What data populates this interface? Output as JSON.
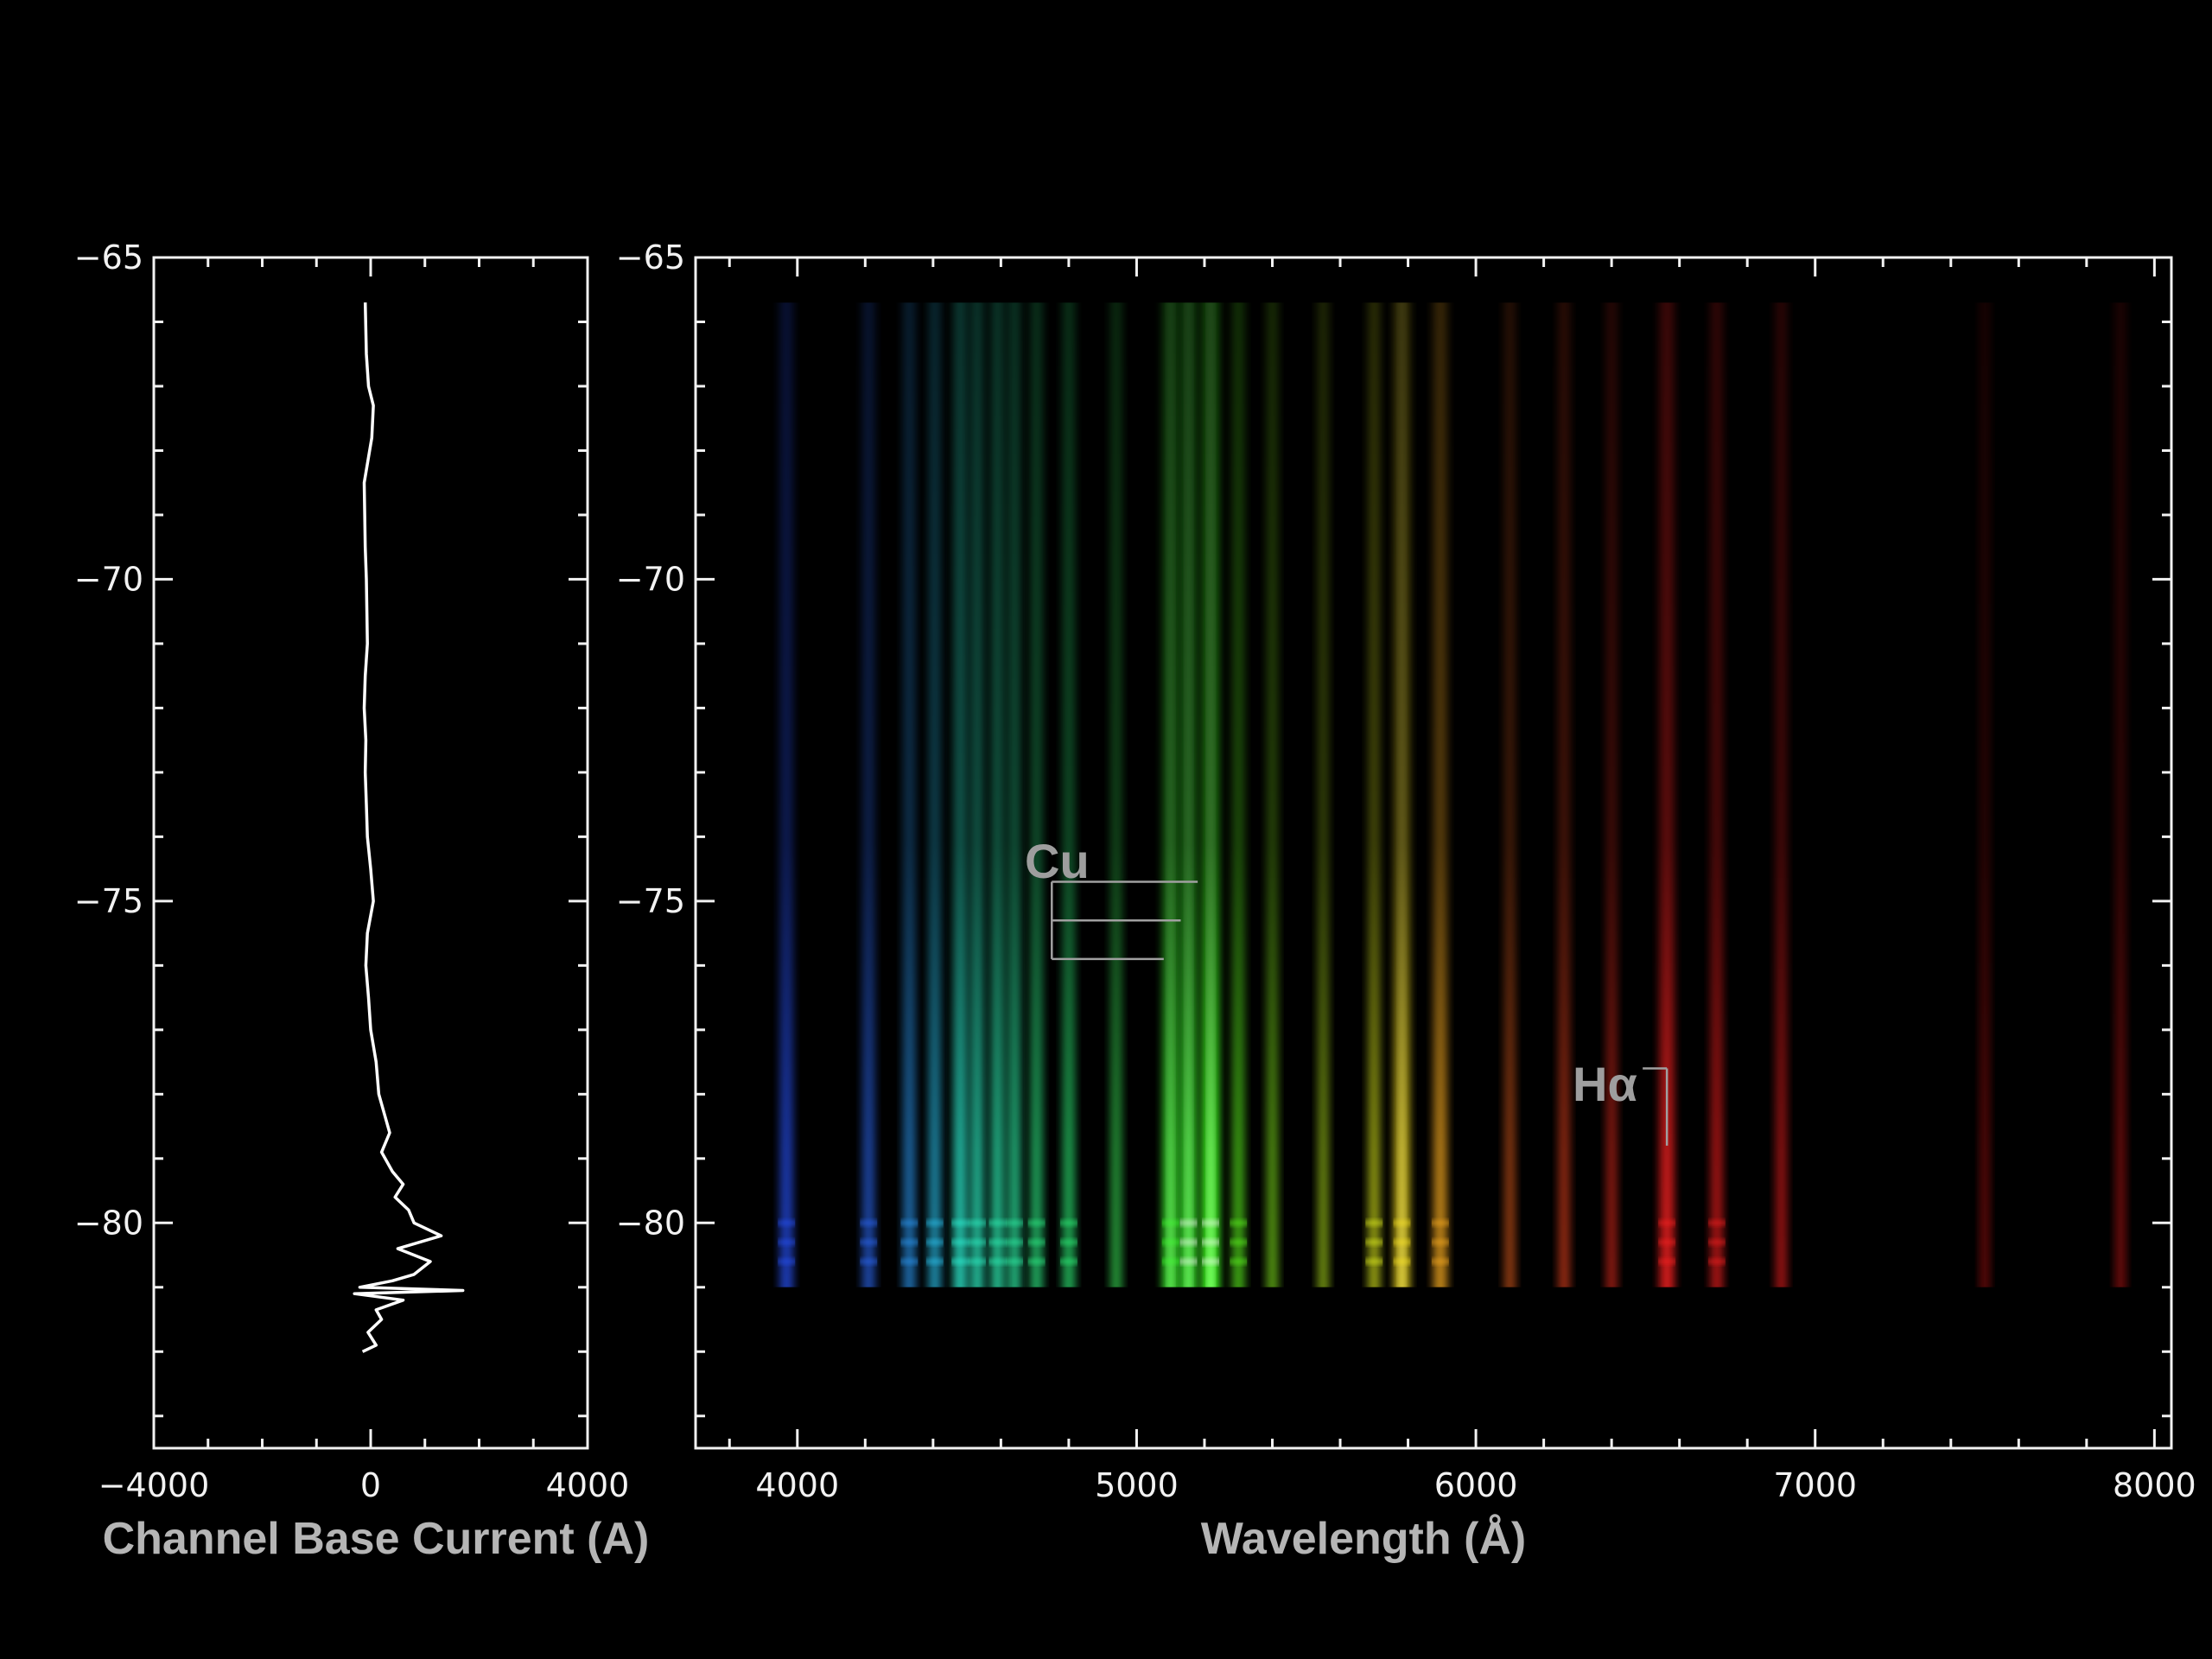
{
  "chart_data": [
    {
      "type": "line",
      "panel": "left",
      "xlabel": "Channel Base Current (A)",
      "ylabel": "",
      "xlim": [
        -4000,
        4000
      ],
      "ylim": [
        -83.5,
        -65
      ],
      "x_ticks": [
        -4000,
        0,
        4000
      ],
      "x_tick_labels": [
        "−4000",
        "0",
        "4000"
      ],
      "y_ticks": [
        -65,
        -70,
        -75,
        -80
      ],
      "y_tick_labels": [
        "−65",
        "−70",
        "−75",
        "−80"
      ],
      "series": [
        {
          "y": [
            -65.7,
            -66.5,
            -67.0,
            -67.3,
            -67.8,
            -68.5,
            -69.0,
            -69.5,
            -70.0,
            -70.5,
            -71.0,
            -71.5,
            -72.0,
            -72.5,
            -73.0,
            -73.5,
            -74.0,
            -74.5,
            -75.0,
            -75.5,
            -76.0,
            -76.5,
            -77.0,
            -77.5,
            -78.0,
            -78.3,
            -78.6,
            -78.9,
            -79.2,
            -79.4,
            -79.6,
            -79.8,
            -80.0,
            -80.2,
            -80.4,
            -80.6,
            -80.8,
            -80.9,
            -81.0,
            -81.05,
            -81.1,
            -81.2,
            -81.35,
            -81.5,
            -81.7,
            -81.9,
            -82.0
          ],
          "x": [
            -100,
            -80,
            -40,
            50,
            20,
            -120,
            -110,
            -100,
            -80,
            -70,
            -60,
            -100,
            -120,
            -90,
            -100,
            -80,
            -60,
            0,
            50,
            -60,
            -90,
            -40,
            0,
            100,
            150,
            250,
            350,
            200,
            400,
            600,
            450,
            700,
            800,
            1300,
            500,
            1100,
            800,
            400,
            -200,
            1700,
            -300,
            600,
            100,
            200,
            -50,
            100,
            -150
          ]
        }
      ]
    },
    {
      "type": "heatmap",
      "panel": "right",
      "xlabel": "Wavelength (Å)",
      "ylabel": "",
      "xlim": [
        3700,
        8050
      ],
      "ylim": [
        -83.5,
        -65
      ],
      "x_ticks": [
        4000,
        5000,
        6000,
        7000,
        8000
      ],
      "x_tick_labels": [
        "4000",
        "5000",
        "6000",
        "7000",
        "8000"
      ],
      "y_ticks": [
        -65,
        -70,
        -75,
        -80
      ],
      "y_tick_labels": [
        "−65",
        "−70",
        "−75",
        "−80"
      ],
      "spectrum_extent": {
        "x": [
          3750,
          7970
        ],
        "y": [
          -81.0,
          -65.7
        ]
      },
      "emission_lines": [
        {
          "wavelength": 3968,
          "color": "#2a55ff",
          "intensity": 0.55
        },
        {
          "wavelength": 4210,
          "color": "#2f6dff",
          "intensity": 0.45
        },
        {
          "wavelength": 4330,
          "color": "#2fa0ff",
          "intensity": 0.45
        },
        {
          "wavelength": 4405,
          "color": "#2fd0ff",
          "intensity": 0.45
        },
        {
          "wavelength": 4480,
          "color": "#30ffe0",
          "intensity": 0.6
        },
        {
          "wavelength": 4530,
          "color": "#30ffd0",
          "intensity": 0.55
        },
        {
          "wavelength": 4590,
          "color": "#30ffc0",
          "intensity": 0.55
        },
        {
          "wavelength": 4640,
          "color": "#30ffb0",
          "intensity": 0.5
        },
        {
          "wavelength": 4705,
          "color": "#30ff90",
          "intensity": 0.45
        },
        {
          "wavelength": 4800,
          "color": "#30ff80",
          "intensity": 0.45
        },
        {
          "wavelength": 4940,
          "color": "#40ff60",
          "intensity": 0.35
        },
        {
          "wavelength": 5100,
          "color": "#40ff30",
          "intensity": 0.8
        },
        {
          "wavelength": 5153,
          "color": "#40ff30",
          "intensity": 0.85
        },
        {
          "wavelength": 5218,
          "color": "#40ff20",
          "intensity": 1.0
        },
        {
          "wavelength": 5300,
          "color": "#60ff20",
          "intensity": 0.45
        },
        {
          "wavelength": 5400,
          "color": "#90ff20",
          "intensity": 0.35
        },
        {
          "wavelength": 5550,
          "color": "#c8ff20",
          "intensity": 0.3
        },
        {
          "wavelength": 5700,
          "color": "#f0ff20",
          "intensity": 0.4
        },
        {
          "wavelength": 5782,
          "color": "#ffe820",
          "intensity": 0.75
        },
        {
          "wavelength": 5895,
          "color": "#ffb020",
          "intensity": 0.6
        },
        {
          "wavelength": 6100,
          "color": "#ff6a20",
          "intensity": 0.3
        },
        {
          "wavelength": 6260,
          "color": "#ff4a20",
          "intensity": 0.35
        },
        {
          "wavelength": 6400,
          "color": "#ff3020",
          "intensity": 0.3
        },
        {
          "wavelength": 6563,
          "color": "#ff2020",
          "intensity": 0.7
        },
        {
          "wavelength": 6710,
          "color": "#ff2020",
          "intensity": 0.45
        },
        {
          "wavelength": 6900,
          "color": "#ff2020",
          "intensity": 0.35
        },
        {
          "wavelength": 7500,
          "color": "#d01818",
          "intensity": 0.15
        },
        {
          "wavelength": 7900,
          "color": "#d01818",
          "intensity": 0.25
        }
      ],
      "annotations": [
        {
          "label": "Cu",
          "lines": [
            5180,
            5130,
            5080
          ],
          "bracket_x": 4750,
          "y": [
            -74.7,
            -75.3,
            -75.9
          ]
        },
        {
          "label": "Hα",
          "wavelength": 6563,
          "y_top": -77.6,
          "y_bottom": -78.8
        }
      ]
    }
  ]
}
